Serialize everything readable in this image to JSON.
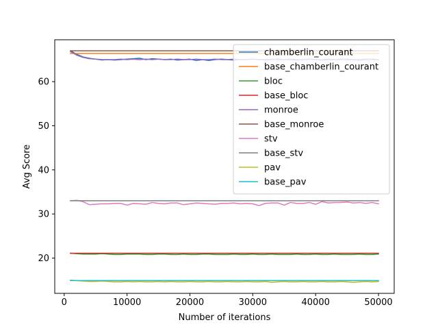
{
  "chart_data": {
    "type": "line",
    "title": "",
    "xlabel": "Number of iterations",
    "ylabel": "Avg Score",
    "xlim": [
      -1500,
      52500
    ],
    "ylim": [
      12.0,
      69.5
    ],
    "x_ticks": [
      0,
      10000,
      20000,
      30000,
      40000,
      50000
    ],
    "x_tick_labels": [
      "0",
      "10000",
      "20000",
      "30000",
      "40000",
      "50000"
    ],
    "y_ticks": [
      20,
      30,
      40,
      50,
      60
    ],
    "y_tick_labels": [
      "20",
      "30",
      "40",
      "50",
      "60"
    ],
    "grid": false,
    "legend_position": "top-right",
    "x": [
      1000,
      2000,
      3000,
      4000,
      5000,
      6000,
      7000,
      8000,
      9000,
      10000,
      11000,
      12000,
      13000,
      14000,
      15000,
      16000,
      17000,
      18000,
      19000,
      20000,
      21000,
      22000,
      23000,
      24000,
      25000,
      26000,
      27000,
      28000,
      29000,
      30000,
      31000,
      32000,
      33000,
      34000,
      35000,
      36000,
      37000,
      38000,
      39000,
      40000,
      41000,
      42000,
      43000,
      44000,
      45000,
      46000,
      47000,
      48000,
      49000,
      50000
    ],
    "series": [
      {
        "name": "chamberlin_courant",
        "color": "#1f77b4",
        "values": [
          67.0,
          66.2,
          65.6,
          65.3,
          65.1,
          65.0,
          65.0,
          64.9,
          65.0,
          65.1,
          65.2,
          65.3,
          65.0,
          65.2,
          65.1,
          65.0,
          65.1,
          64.9,
          65.0,
          65.1,
          64.8,
          65.0,
          64.8,
          65.0,
          65.1,
          65.0,
          64.9,
          65.0,
          65.0,
          65.1,
          65.0,
          64.9,
          65.0,
          65.1,
          65.0,
          65.0,
          64.9,
          65.0,
          65.1,
          65.0,
          64.9,
          65.0,
          65.0,
          65.1,
          65.0,
          65.0,
          64.9,
          65.0,
          65.1,
          65.0
        ]
      },
      {
        "name": "base_chamberlin_courant",
        "color": "#ff7f0e",
        "values": [
          66.4,
          66.4,
          66.4,
          66.4,
          66.4,
          66.4,
          66.4,
          66.4,
          66.4,
          66.4,
          66.4,
          66.4,
          66.4,
          66.4,
          66.4,
          66.4,
          66.4,
          66.4,
          66.4,
          66.4,
          66.4,
          66.4,
          66.4,
          66.4,
          66.4,
          66.4,
          66.4,
          66.4,
          66.4,
          66.4,
          66.4,
          66.4,
          66.4,
          66.4,
          66.4,
          66.4,
          66.4,
          66.4,
          66.4,
          66.4,
          66.4,
          66.4,
          66.4,
          66.4,
          66.4,
          66.4,
          66.4,
          66.4,
          66.4,
          66.4
        ]
      },
      {
        "name": "bloc",
        "color": "#2ca02c",
        "values": [
          21.1,
          21.0,
          20.9,
          20.9,
          20.9,
          21.0,
          20.9,
          20.8,
          20.8,
          20.9,
          20.9,
          20.9,
          20.8,
          20.8,
          20.9,
          20.9,
          20.8,
          20.8,
          20.9,
          20.8,
          20.8,
          20.9,
          20.9,
          20.8,
          20.8,
          20.8,
          20.9,
          20.8,
          20.8,
          20.9,
          20.8,
          20.8,
          20.9,
          20.8,
          20.8,
          20.8,
          20.9,
          20.8,
          20.8,
          20.9,
          20.8,
          20.8,
          20.9,
          20.8,
          20.8,
          20.8,
          20.9,
          20.8,
          20.8,
          20.9
        ]
      },
      {
        "name": "base_bloc",
        "color": "#d62728",
        "values": [
          21.1,
          21.1,
          21.1,
          21.1,
          21.1,
          21.1,
          21.1,
          21.1,
          21.1,
          21.1,
          21.1,
          21.1,
          21.1,
          21.1,
          21.1,
          21.1,
          21.1,
          21.1,
          21.1,
          21.1,
          21.1,
          21.1,
          21.1,
          21.1,
          21.1,
          21.1,
          21.1,
          21.1,
          21.1,
          21.1,
          21.1,
          21.1,
          21.1,
          21.1,
          21.1,
          21.1,
          21.1,
          21.1,
          21.1,
          21.1,
          21.1,
          21.1,
          21.1,
          21.1,
          21.1,
          21.1,
          21.1,
          21.1,
          21.1,
          21.1
        ]
      },
      {
        "name": "monroe",
        "color": "#9467bd",
        "values": [
          66.8,
          66.0,
          65.5,
          65.2,
          65.1,
          64.9,
          65.0,
          65.0,
          65.1,
          65.0,
          65.1,
          65.0,
          65.1,
          65.0,
          65.1,
          65.0,
          65.0,
          65.1,
          65.0,
          65.0,
          65.1,
          65.0,
          65.0,
          65.1,
          65.0,
          65.0,
          65.1,
          65.0,
          65.0,
          65.1,
          65.0,
          65.0,
          65.1,
          65.0,
          65.0,
          65.1,
          65.0,
          65.0,
          65.1,
          65.0,
          65.0,
          65.1,
          65.0,
          65.0,
          65.1,
          65.0,
          65.0,
          65.1,
          65.0,
          65.0
        ]
      },
      {
        "name": "base_monroe",
        "color": "#8c564b",
        "values": [
          67.0,
          67.0,
          67.0,
          67.0,
          67.0,
          67.0,
          67.0,
          67.0,
          67.0,
          67.0,
          67.0,
          67.0,
          67.0,
          67.0,
          67.0,
          67.0,
          67.0,
          67.0,
          67.0,
          67.0,
          67.0,
          67.0,
          67.0,
          67.0,
          67.0,
          67.0,
          67.0,
          67.0,
          67.0,
          67.0,
          67.0,
          67.0,
          67.0,
          67.0,
          67.0,
          67.0,
          67.0,
          67.0,
          67.0,
          67.0,
          67.0,
          67.0,
          67.0,
          67.0,
          67.0,
          67.0,
          67.0,
          67.0,
          67.0,
          67.0
        ]
      },
      {
        "name": "stv",
        "color": "#e377c2",
        "values": [
          33.0,
          33.1,
          32.8,
          32.1,
          32.2,
          32.3,
          32.3,
          32.4,
          32.4,
          32.0,
          32.4,
          32.3,
          32.2,
          32.6,
          32.4,
          32.3,
          32.5,
          32.5,
          32.1,
          32.3,
          32.5,
          32.4,
          32.3,
          32.2,
          32.4,
          32.4,
          32.5,
          32.3,
          32.4,
          32.3,
          31.9,
          32.4,
          32.5,
          32.5,
          32.0,
          32.6,
          32.4,
          32.4,
          32.6,
          32.2,
          32.8,
          32.5,
          32.6,
          32.6,
          32.7,
          32.5,
          32.6,
          32.4,
          32.6,
          32.3
        ]
      },
      {
        "name": "base_stv",
        "color": "#7f7f7f",
        "values": [
          33.0,
          33.0,
          33.0,
          33.0,
          33.0,
          33.0,
          33.0,
          33.0,
          33.0,
          33.0,
          33.0,
          33.0,
          33.0,
          33.0,
          33.0,
          33.0,
          33.0,
          33.0,
          33.0,
          33.0,
          33.0,
          33.0,
          33.0,
          33.0,
          33.0,
          33.0,
          33.0,
          33.0,
          33.0,
          33.0,
          33.0,
          33.0,
          33.0,
          33.0,
          33.0,
          33.0,
          33.0,
          33.0,
          33.0,
          33.0,
          33.0,
          33.0,
          33.0,
          33.0,
          33.0,
          33.0,
          33.0,
          33.0,
          33.0,
          33.0
        ]
      },
      {
        "name": "pav",
        "color": "#bcbd22",
        "values": [
          15.0,
          14.9,
          14.8,
          14.7,
          14.7,
          14.8,
          14.7,
          14.6,
          14.6,
          14.7,
          14.6,
          14.7,
          14.6,
          14.6,
          14.7,
          14.6,
          14.7,
          14.6,
          14.6,
          14.7,
          14.6,
          14.6,
          14.7,
          14.6,
          14.6,
          14.7,
          14.6,
          14.6,
          14.7,
          14.6,
          14.6,
          14.7,
          14.5,
          14.6,
          14.7,
          14.6,
          14.6,
          14.7,
          14.6,
          14.6,
          14.7,
          14.6,
          14.6,
          14.7,
          14.6,
          14.5,
          14.6,
          14.7,
          14.6,
          14.7
        ]
      },
      {
        "name": "base_pav",
        "color": "#17becf",
        "values": [
          14.9,
          14.9,
          14.9,
          14.9,
          14.9,
          14.9,
          14.9,
          14.9,
          14.9,
          14.9,
          14.9,
          14.9,
          14.9,
          14.9,
          14.9,
          14.9,
          14.9,
          14.9,
          14.9,
          14.9,
          14.9,
          14.9,
          14.9,
          14.9,
          14.9,
          14.9,
          14.9,
          14.9,
          14.9,
          14.9,
          14.9,
          14.9,
          14.9,
          14.9,
          14.9,
          14.9,
          14.9,
          14.9,
          14.9,
          14.9,
          14.9,
          14.9,
          14.9,
          14.9,
          14.9,
          14.9,
          14.9,
          14.9,
          14.9,
          14.9
        ]
      }
    ]
  }
}
